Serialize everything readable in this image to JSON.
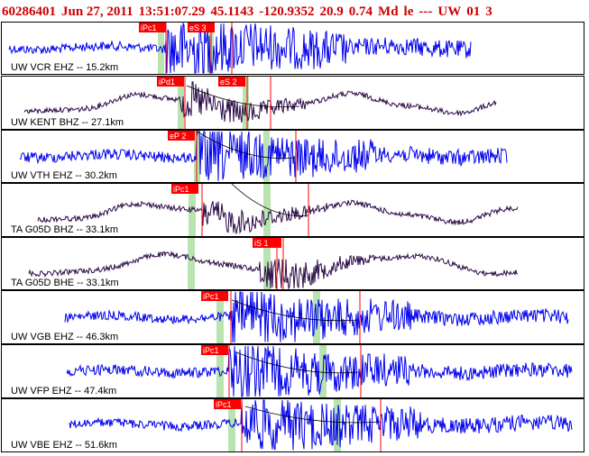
{
  "header": {
    "event_id": "60286401",
    "date": "Jun 27, 2011",
    "time": "13:51:07.29",
    "latitude": "45.1143",
    "longitude": "-120.9352",
    "depth": "20.9",
    "magnitude": "0.74",
    "mag_type": "Md",
    "flag": "le",
    "sep": "---",
    "network": "UW",
    "version": "01",
    "page": "3"
  },
  "colors": {
    "pick_bg": "#ff0000",
    "pick_text": "#ffffff",
    "window_band": "#b9e4b0",
    "trace_blue": "#0000ee",
    "trace_dark": "#2a0a46",
    "header_red": "#cc0000"
  },
  "traces": [
    {
      "label": "UW VCR EHZ -- 15.2km",
      "style": "blue",
      "picks": [
        {
          "text": "iPc1"
        },
        {
          "text": "eS 3"
        }
      ]
    },
    {
      "label": "UW KENT BHZ -- 27.1km",
      "style": "dark",
      "picks": [
        {
          "text": "iPd1"
        },
        {
          "text": "eS 2"
        }
      ]
    },
    {
      "label": "UW VTH EHZ -- 30.2km",
      "style": "blue",
      "picks": [
        {
          "text": "eP 2"
        }
      ]
    },
    {
      "label": "TA G05D BHZ -- 33.1km",
      "style": "dark",
      "picks": [
        {
          "text": "iPc1"
        }
      ]
    },
    {
      "label": "TA G05D BHE -- 33.1km",
      "style": "dark",
      "picks": [
        {
          "text": "iS 1"
        }
      ]
    },
    {
      "label": "UW VGB EHZ -- 46.3km",
      "style": "blue",
      "picks": [
        {
          "text": "iPc1"
        }
      ]
    },
    {
      "label": "UW VFP EHZ -- 47.4km",
      "style": "blue",
      "picks": [
        {
          "text": "iPc1"
        }
      ]
    },
    {
      "label": "UW VBE EHZ -- 51.6km",
      "style": "blue",
      "picks": [
        {
          "text": "iPc1"
        }
      ]
    }
  ]
}
